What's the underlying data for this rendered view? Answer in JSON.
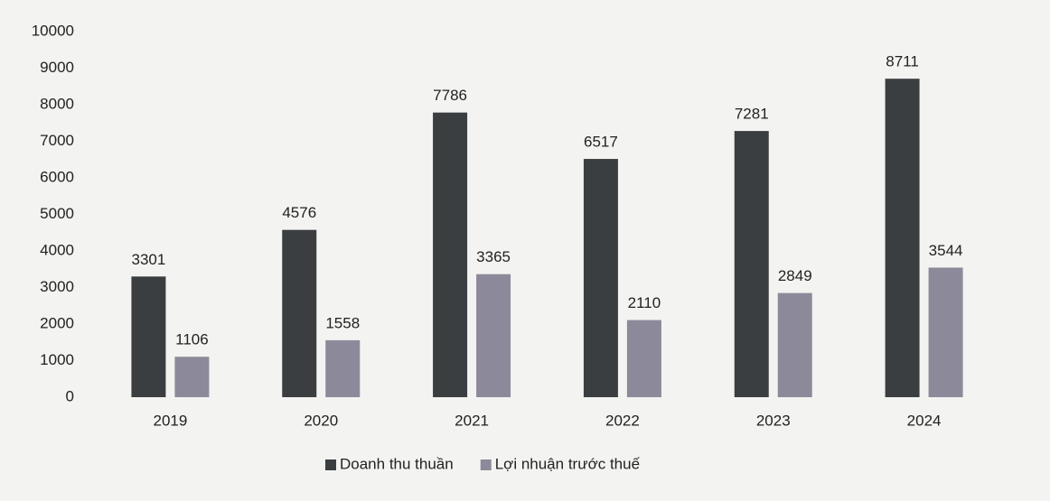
{
  "chart_data": {
    "type": "bar",
    "categories": [
      "2019",
      "2020",
      "2021",
      "2022",
      "2023",
      "2024"
    ],
    "series": [
      {
        "name": "Doanh thu thuần",
        "color": "#3b3e40",
        "values": [
          3301,
          4576,
          7786,
          6517,
          7281,
          8711
        ]
      },
      {
        "name": "Lợi nhuận trước thuế",
        "color": "#8c8a9a",
        "values": [
          1106,
          1558,
          3365,
          2110,
          2849,
          3544
        ]
      }
    ],
    "ylim": [
      0,
      10000
    ],
    "yticks": [
      0,
      1000,
      2000,
      3000,
      4000,
      5000,
      6000,
      7000,
      8000,
      9000,
      10000
    ],
    "grid": false,
    "legend": "bottom"
  }
}
